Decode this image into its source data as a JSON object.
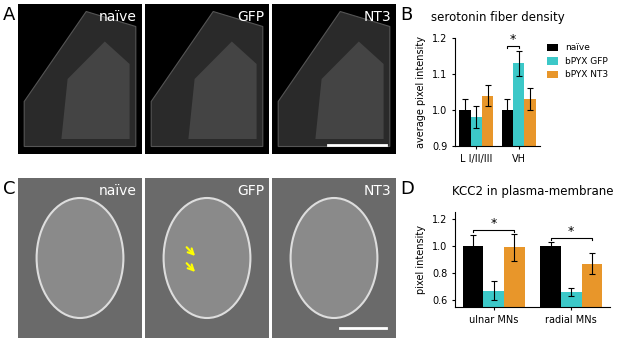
{
  "chart_data": [
    {
      "panel": "B",
      "type": "bar",
      "title": "serotonin fiber density",
      "y_label": "average pixel intensity",
      "categories": [
        "L I/II/III",
        "VH"
      ],
      "series": [
        {
          "name": "naïve",
          "color": "#000000",
          "values": [
            1.0,
            1.0
          ],
          "errors": [
            0.03,
            0.03
          ]
        },
        {
          "name": "bPYX GFP",
          "color": "#3cc8c8",
          "values": [
            0.98,
            1.13
          ],
          "errors": [
            0.03,
            0.035
          ]
        },
        {
          "name": "bPYX NT3",
          "color": "#e8962a",
          "values": [
            1.04,
            1.03
          ],
          "errors": [
            0.03,
            0.03
          ]
        }
      ],
      "ylim": [
        0.9,
        1.2
      ],
      "yticks": [
        0.9,
        {
          "value": 1.0,
          "label": "1.0"
        },
        1.1,
        1.2
      ],
      "legend": "upper left",
      "significance": [
        {
          "category": "VH",
          "from": "naïve",
          "to": "bPYX GFP",
          "text": "*"
        }
      ]
    },
    {
      "panel": "D",
      "type": "bar",
      "title": "KCC2 in plasma-membrane",
      "y_label": "pixel intensity",
      "categories": [
        "ulnar MNs",
        "radial MNs"
      ],
      "series": [
        {
          "name": "naïve",
          "color": "#000000",
          "values": [
            1.0,
            1.0
          ],
          "errors": [
            0.08,
            0.03
          ]
        },
        {
          "name": "bPYX GFP",
          "color": "#3cc8c8",
          "values": [
            0.67,
            0.66
          ],
          "errors": [
            0.07,
            0.03
          ]
        },
        {
          "name": "bPYX NT3",
          "color": "#e8962a",
          "values": [
            0.99,
            0.87
          ],
          "errors": [
            0.1,
            0.08
          ]
        }
      ],
      "ylim": [
        0.55,
        1.25
      ],
      "yticks": [
        0.6,
        0.8,
        {
          "value": 1.0,
          "label": "1.0"
        },
        1.2
      ],
      "significance": [
        {
          "category": "ulnar MNs",
          "from": "naïve",
          "to": "bPYX NT3",
          "text": "*"
        },
        {
          "category": "radial MNs",
          "from": "naïve",
          "to": "bPYX NT3",
          "text": "*"
        }
      ]
    }
  ],
  "image_panels": [
    {
      "panel": "A",
      "labels": [
        "naïve",
        "GFP",
        "NT3"
      ]
    },
    {
      "panel": "C",
      "labels": [
        "naïve",
        "GFP",
        "NT3"
      ]
    }
  ]
}
